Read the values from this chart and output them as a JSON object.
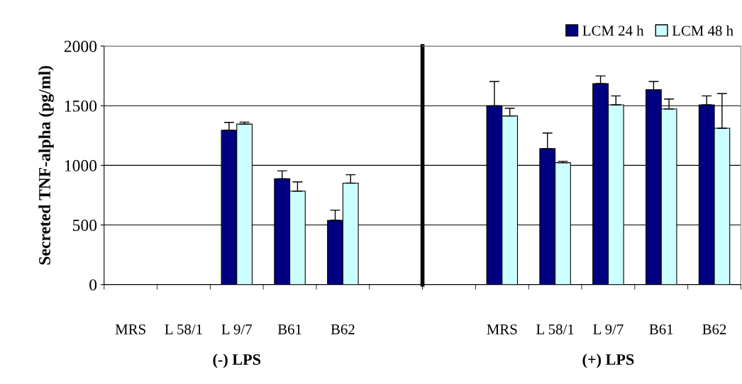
{
  "chart_data": [
    {
      "type": "bar",
      "ylabel": "Secreted TNF-alpha (pg/ml)",
      "categories": [
        "MRS",
        "L 58/1",
        "L 9/7",
        "B61",
        "B62",
        null
      ],
      "series": [
        {
          "name": "LCM 24 h",
          "color": "#000080",
          "values": [
            0,
            0,
            1295,
            887,
            539,
            null
          ],
          "errors": [
            null,
            null,
            [
              1295,
              1360
            ],
            [
              887,
              954
            ],
            [
              539,
              624
            ],
            null
          ]
        },
        {
          "name": "LCM 48 h",
          "color": "#ccffff",
          "values": [
            0,
            0,
            1346,
            784,
            851,
            null
          ],
          "errors": [
            null,
            null,
            [
              1346,
              1362
            ],
            [
              784,
              861
            ],
            [
              851,
              921
            ],
            null
          ]
        }
      ],
      "ylim": [
        0,
        2000
      ],
      "yticks": [
        0,
        500,
        1000,
        1500,
        2000
      ],
      "grid": "y",
      "legend": "top right",
      "annotations": [
        "(-) LPS"
      ]
    },
    {
      "type": "bar",
      "categories": [
        null,
        "MRS",
        "L 58/1",
        "L 9/7",
        "B61",
        "B62"
      ],
      "series": [
        {
          "color": "#000080",
          "values": [
            null,
            1499,
            1140,
            1685,
            1634,
            1507
          ],
          "errors": [
            null,
            [
              1499,
              1703
            ],
            [
              1140,
              1271
            ],
            [
              1685,
              1750
            ],
            [
              1634,
              1703
            ],
            [
              1507,
              1582
            ]
          ]
        },
        {
          "color": "#ccffff",
          "values": [
            null,
            1414,
            1022,
            1507,
            1473,
            1311
          ],
          "errors": [
            null,
            [
              1414,
              1479
            ],
            [
              1022,
              1034
            ],
            [
              1507,
              1582
            ],
            [
              1473,
              1556
            ],
            [
              1311,
              1602
            ]
          ]
        }
      ],
      "ylim": [
        0,
        2000
      ],
      "yticks": [
        0,
        500,
        1000,
        1500,
        2000
      ],
      "grid": "y",
      "tick_labels": "x",
      "annotations": [
        "(+) LPS"
      ]
    }
  ]
}
